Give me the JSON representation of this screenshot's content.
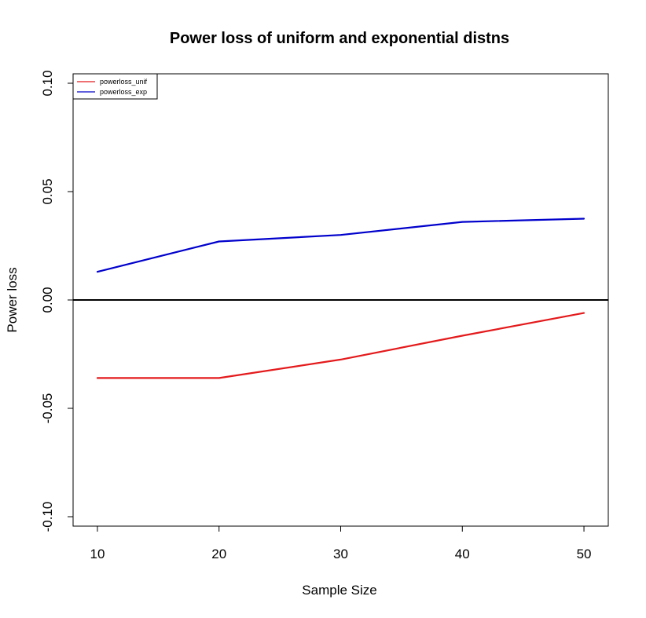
{
  "chart_data": {
    "type": "line",
    "title": "Power loss of uniform and exponential distns",
    "xlabel": "Sample Size",
    "ylabel": "Power loss",
    "x": [
      10,
      20,
      30,
      40,
      50
    ],
    "xlim": [
      8,
      52
    ],
    "ylim": [
      -0.1,
      0.1
    ],
    "xticks": [
      10,
      20,
      30,
      40,
      50
    ],
    "xtick_labels": [
      "10",
      "20",
      "30",
      "40",
      "50"
    ],
    "yticks": [
      -0.1,
      -0.05,
      0.0,
      0.05,
      0.1
    ],
    "ytick_labels": [
      "-0.10",
      "-0.05",
      "0.00",
      "0.05",
      "0.10"
    ],
    "reference_line": 0.0,
    "grid": false,
    "legend_position": "top-left",
    "series": [
      {
        "name": "powerloss_unif",
        "color": "#e41a1c",
        "values": [
          -0.036,
          -0.036,
          -0.0275,
          -0.0165,
          -0.006
        ]
      },
      {
        "name": "powerloss_exp",
        "color": "#0000cc",
        "values": [
          0.013,
          0.027,
          0.03,
          0.036,
          0.0375
        ]
      }
    ]
  }
}
